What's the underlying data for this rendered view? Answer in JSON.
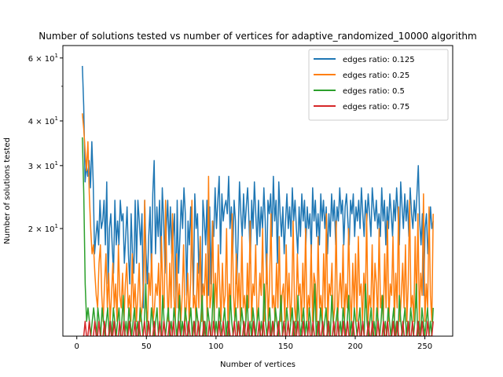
{
  "chart_data": {
    "type": "line",
    "title": "Number of solutions tested vs number of vertices for adaptive_randomized_10000 algorithm",
    "xlabel": "Number of vertices",
    "ylabel": "Number of solutions tested",
    "x_start": 4,
    "x_end": 256,
    "xlim": [
      -10,
      270
    ],
    "ylim": [
      10,
      65
    ],
    "y_scale": "log",
    "x_ticks": [
      0,
      50,
      100,
      150,
      200,
      250
    ],
    "y_ticks": [
      {
        "value": 20,
        "label": "2 × 10^1"
      },
      {
        "value": 30,
        "label": "3 × 10^1"
      },
      {
        "value": 40,
        "label": "4 × 10^1"
      },
      {
        "value": 60,
        "label": "6 × 10^1"
      }
    ],
    "legend_position": "top-right",
    "grid": false,
    "series": [
      {
        "name": "edges ratio: 0.125",
        "color": "#1f77b4",
        "values": [
          57,
          44,
          27,
          30,
          28,
          31,
          26,
          35,
          27,
          17,
          19,
          21,
          18,
          24,
          20,
          21,
          24,
          18,
          27,
          14,
          20,
          22,
          18,
          15,
          24,
          18,
          21,
          18,
          24,
          21,
          22,
          16,
          19,
          23,
          17,
          14,
          22,
          17,
          15,
          24,
          16,
          24,
          21,
          18,
          22,
          12,
          24,
          17,
          14,
          19,
          23,
          15,
          25,
          31,
          17,
          23,
          19,
          24,
          16,
          26,
          21,
          15,
          20,
          24,
          18,
          23,
          17,
          19,
          22,
          12,
          24,
          15,
          19,
          24,
          20,
          26,
          22,
          13,
          21,
          18,
          23,
          17,
          13,
          25,
          20,
          22,
          15,
          19,
          12,
          24,
          21,
          18,
          24,
          13,
          23,
          14,
          21,
          19,
          26,
          20,
          24,
          28,
          17,
          25,
          21,
          23,
          24,
          22,
          28,
          20,
          23,
          17,
          24,
          21,
          14,
          19,
          27,
          22,
          19,
          25,
          20,
          23,
          26,
          21,
          16,
          24,
          20,
          27,
          22,
          18,
          24,
          19,
          23,
          20,
          26,
          21,
          14,
          24,
          22,
          25,
          19,
          28,
          21,
          24,
          16,
          27,
          22,
          19,
          23,
          17,
          21,
          25,
          20,
          23,
          19,
          26,
          21,
          24,
          20,
          17,
          23,
          19,
          25,
          21,
          24,
          18,
          23,
          20,
          22,
          17,
          26,
          21,
          24,
          19,
          22,
          18,
          25,
          21,
          24,
          20,
          23,
          17,
          22,
          19,
          25,
          21,
          24,
          18,
          23,
          21,
          26,
          22,
          24,
          18,
          23,
          25,
          21,
          18,
          24,
          22,
          25,
          19,
          23,
          21,
          24,
          20,
          26,
          22,
          19,
          24,
          21,
          25,
          22,
          19,
          26,
          23,
          21,
          24,
          20,
          22,
          19,
          26,
          21,
          24,
          18,
          23,
          20,
          25,
          22,
          19,
          24,
          21,
          26,
          22,
          18,
          27,
          23,
          20,
          25,
          21,
          24,
          19,
          26,
          22,
          20,
          24,
          21,
          25,
          30,
          21,
          18,
          22,
          13,
          20,
          22,
          17,
          19,
          23,
          20,
          21
        ]
      },
      {
        "name": "edges ratio: 0.25",
        "color": "#ff7f0e",
        "values": [
          42,
          38,
          33,
          29,
          35,
          25,
          20,
          17,
          18,
          15,
          13,
          12,
          16,
          18,
          13,
          11,
          14,
          17,
          12,
          15,
          11,
          13,
          16,
          12,
          14,
          11,
          18,
          13,
          12,
          15,
          11,
          14,
          16,
          12,
          13,
          11,
          17,
          12,
          14,
          11,
          13,
          16,
          11,
          12,
          14,
          24,
          12,
          11,
          15,
          13,
          17,
          11,
          12,
          14,
          13,
          16,
          11,
          19,
          13,
          12,
          24,
          14,
          11,
          16,
          12,
          22,
          13,
          11,
          17,
          12,
          14,
          11,
          13,
          18,
          11,
          12,
          15,
          11,
          14,
          24,
          12,
          13,
          11,
          16,
          12,
          19,
          11,
          14,
          13,
          17,
          11,
          28,
          12,
          13,
          21,
          11,
          15,
          12,
          18,
          14,
          11,
          16,
          12,
          13,
          20,
          11,
          14,
          12,
          22,
          13,
          11,
          17,
          12,
          15,
          11,
          19,
          12,
          13,
          11,
          16,
          12,
          21,
          11,
          14,
          13,
          18,
          11,
          12,
          15,
          13,
          20,
          11,
          12,
          17,
          11,
          14,
          22,
          12,
          13,
          11,
          16,
          12,
          19,
          11,
          13,
          14,
          11,
          18,
          12,
          15,
          11,
          13,
          21,
          12,
          11,
          17,
          13,
          14,
          11,
          16,
          12,
          20,
          11,
          13,
          12,
          18,
          11,
          15,
          14,
          11,
          19,
          12,
          13,
          11,
          17,
          12,
          22,
          11,
          14,
          13,
          16,
          11,
          12,
          21,
          11,
          13,
          15,
          12,
          18,
          11,
          14,
          12,
          20,
          13,
          11,
          16,
          12,
          17,
          11,
          19,
          13,
          14,
          11,
          15,
          12,
          22,
          11,
          13,
          12,
          18,
          11,
          16,
          14,
          11,
          20,
          12,
          13,
          11,
          17,
          12,
          21,
          11,
          14,
          13,
          19,
          11,
          15,
          12,
          23,
          11,
          13,
          16,
          12,
          18,
          11,
          14,
          24,
          12,
          13,
          11,
          19,
          12,
          22,
          11,
          15,
          13,
          25,
          11,
          14,
          12,
          23,
          13,
          11,
          22
        ]
      },
      {
        "name": "edges ratio: 0.5",
        "color": "#2ca02c",
        "values": [
          36,
          25,
          14,
          11,
          12,
          11,
          10,
          11,
          12,
          11,
          10,
          12,
          11,
          10,
          12,
          11,
          10,
          11,
          12,
          10,
          11,
          10,
          12,
          11,
          10,
          11,
          12,
          10,
          11,
          13,
          10,
          11,
          10,
          12,
          11,
          10,
          11,
          12,
          10,
          11,
          10,
          12,
          11,
          10,
          11,
          14,
          10,
          11,
          10,
          12,
          11,
          10,
          11,
          12,
          10,
          11,
          10,
          13,
          11,
          10,
          11,
          12,
          10,
          11,
          10,
          12,
          11,
          10,
          11,
          13,
          10,
          11,
          10,
          12,
          11,
          10,
          11,
          12,
          10,
          11,
          10,
          12,
          11,
          10,
          11,
          13,
          10,
          11,
          10,
          12,
          11,
          10,
          11,
          14,
          10,
          11,
          10,
          12,
          11,
          10,
          11,
          12,
          10,
          11,
          10,
          13,
          11,
          10,
          11,
          12,
          10,
          11,
          10,
          12,
          11,
          10,
          11,
          13,
          10,
          11,
          10,
          12,
          11,
          10,
          11,
          12,
          10,
          11,
          10,
          14,
          11,
          10,
          11,
          12,
          10,
          11,
          10,
          12,
          11,
          10,
          11,
          13,
          10,
          11,
          10,
          12,
          11,
          10,
          11,
          12,
          10,
          11,
          10,
          13,
          11,
          10,
          11,
          12,
          10,
          11,
          10,
          12,
          11,
          10,
          11,
          14,
          10,
          11,
          10,
          12,
          11,
          10,
          11,
          12,
          10,
          11,
          10,
          13,
          11,
          10,
          11,
          12,
          10,
          11,
          10,
          12,
          11,
          10,
          11,
          13,
          10,
          11,
          10,
          12,
          11,
          10,
          11,
          12,
          10,
          11,
          10,
          14,
          11,
          10,
          11,
          12,
          10,
          11,
          10,
          12,
          11,
          10,
          11,
          13,
          10,
          11,
          10,
          12,
          11,
          10,
          11,
          12,
          10,
          11,
          10,
          13,
          11,
          10,
          11,
          12,
          10,
          11,
          10,
          12,
          11,
          10,
          11,
          14,
          10,
          11,
          10,
          12,
          11,
          10,
          11,
          12,
          10,
          11,
          10,
          12
        ]
      },
      {
        "name": "edges ratio: 0.75",
        "color": "#d62728",
        "values": [
          10,
          10,
          11,
          10,
          10,
          11,
          10,
          10,
          10,
          11,
          10,
          10,
          11,
          10,
          10,
          10,
          11,
          10,
          10,
          10,
          11,
          10,
          10,
          11,
          10,
          10,
          10,
          11,
          10,
          10,
          11,
          10,
          10,
          10,
          11,
          10,
          10,
          10,
          11,
          10,
          10,
          11,
          10,
          10,
          10,
          11,
          10,
          10,
          11,
          10,
          10,
          10,
          11,
          10,
          10,
          10,
          11,
          10,
          10,
          11,
          10,
          10,
          10,
          11,
          10,
          10,
          11,
          10,
          10,
          10,
          11,
          10,
          10,
          10,
          11,
          10,
          10,
          11,
          10,
          10,
          10,
          11,
          10,
          10,
          11,
          10,
          10,
          10,
          11,
          10,
          10,
          10,
          11,
          10,
          10,
          11,
          10,
          10,
          10,
          11,
          10,
          10,
          11,
          10,
          10,
          10,
          11,
          10,
          10,
          10,
          11,
          10,
          10,
          11,
          10,
          10,
          10,
          11,
          10,
          10,
          11,
          10,
          10,
          10,
          11,
          10,
          10,
          10,
          11,
          10,
          10,
          11,
          10,
          10,
          10,
          11,
          10,
          10,
          11,
          10,
          10,
          10,
          11,
          10,
          10,
          10,
          11,
          10,
          10,
          11,
          10,
          10,
          10,
          11,
          10,
          10,
          11,
          10,
          10,
          10,
          11,
          10,
          10,
          10,
          11,
          10,
          10,
          11,
          10,
          10,
          10,
          11,
          10,
          10,
          11,
          10,
          10,
          10,
          11,
          10,
          10,
          10,
          11,
          10,
          10,
          11,
          10,
          10,
          10,
          11,
          10,
          10,
          11,
          10,
          10,
          10,
          11,
          10,
          10,
          10,
          11,
          10,
          10,
          11,
          10,
          10,
          10,
          11,
          10,
          10,
          11,
          10,
          10,
          10,
          11,
          10,
          10,
          10,
          11,
          10,
          10,
          11,
          10,
          10,
          10,
          11,
          10,
          10,
          11,
          10,
          10,
          10,
          11,
          10,
          10,
          10,
          11,
          10,
          10,
          11,
          10,
          10,
          10,
          11,
          10,
          10,
          11,
          10,
          10,
          10,
          11,
          10,
          10,
          10,
          11
        ]
      }
    ]
  }
}
